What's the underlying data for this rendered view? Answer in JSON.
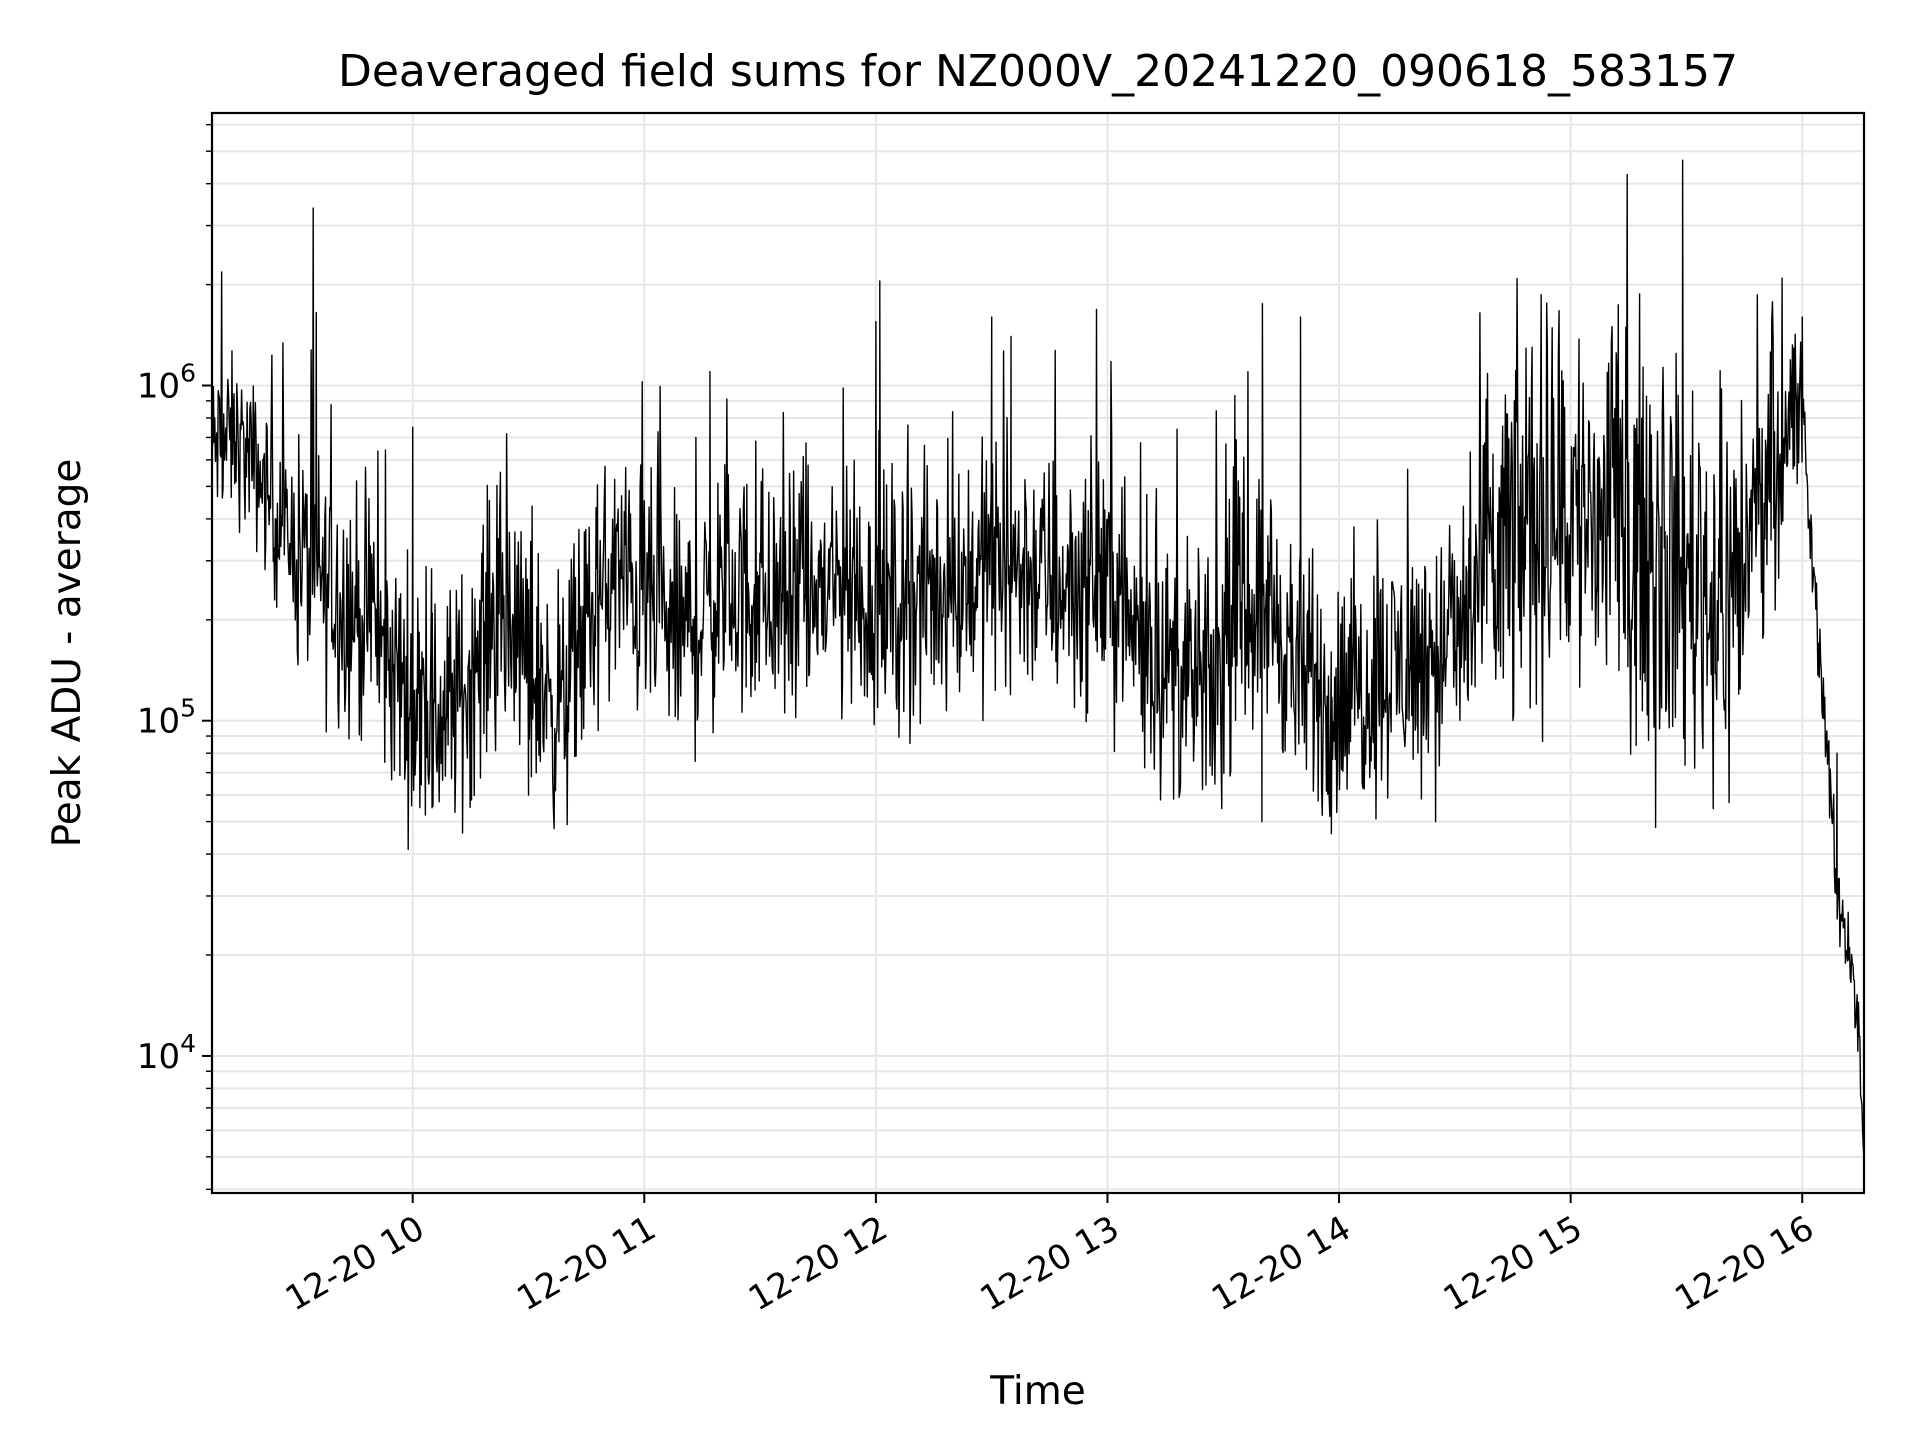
{
  "chart_data": {
    "type": "line",
    "title": "Deaveraged field sums for NZ000V_20241220_090618_583157",
    "xlabel": "Time",
    "ylabel": "Peak ADU - average",
    "yscale": "log",
    "ylim": [
      3900,
      6500000
    ],
    "xlim": [
      "2024-12-20 09:08",
      "2024-12-20 16:16"
    ],
    "grid": true,
    "line_color": "#000000",
    "x_ticks": [
      {
        "label": "12-20 10",
        "value": "2024-12-20 10:00"
      },
      {
        "label": "12-20 11",
        "value": "2024-12-20 11:00"
      },
      {
        "label": "12-20 12",
        "value": "2024-12-20 12:00"
      },
      {
        "label": "12-20 13",
        "value": "2024-12-20 13:00"
      },
      {
        "label": "12-20 14",
        "value": "2024-12-20 14:00"
      },
      {
        "label": "12-20 15",
        "value": "2024-12-20 15:00"
      },
      {
        "label": "12-20 16",
        "value": "2024-12-20 16:00"
      }
    ],
    "y_ticks": [
      {
        "base": "10",
        "exp": "4",
        "value": 10000
      },
      {
        "base": "10",
        "exp": "5",
        "value": 100000
      },
      {
        "base": "10",
        "exp": "6",
        "value": 1000000
      }
    ],
    "series": [
      {
        "x": [
          "2024-12-20 09:08",
          "2024-12-20 09:14",
          "2024-12-20 09:20",
          "2024-12-20 09:25",
          "2024-12-20 09:30",
          "2024-12-20 09:34",
          "2024-12-20 09:38",
          "2024-12-20 09:42",
          "2024-12-20 09:48",
          "2024-12-20 09:53",
          "2024-12-20 09:58",
          "2024-12-20 10:00",
          "2024-12-20 10:06",
          "2024-12-20 10:13",
          "2024-12-20 10:20",
          "2024-12-20 10:27",
          "2024-12-20 10:33",
          "2024-12-20 10:39",
          "2024-12-20 10:45",
          "2024-12-20 10:53",
          "2024-12-20 11:00",
          "2024-12-20 11:08",
          "2024-12-20 11:15",
          "2024-12-20 11:20",
          "2024-12-20 11:30",
          "2024-12-20 11:40",
          "2024-12-20 11:48",
          "2024-12-20 11:55",
          "2024-12-20 12:00",
          "2024-12-20 12:10",
          "2024-12-20 12:20",
          "2024-12-20 12:30",
          "2024-12-20 12:40",
          "2024-12-20 12:50",
          "2024-12-20 12:55",
          "2024-12-20 13:00",
          "2024-12-20 13:05",
          "2024-12-20 13:12",
          "2024-12-20 13:20",
          "2024-12-20 13:27",
          "2024-12-20 13:35",
          "2024-12-20 13:42",
          "2024-12-20 13:50",
          "2024-12-20 14:00",
          "2024-12-20 14:10",
          "2024-12-20 14:20",
          "2024-12-20 14:30",
          "2024-12-20 14:37",
          "2024-12-20 14:45",
          "2024-12-20 14:55",
          "2024-12-20 15:05",
          "2024-12-20 15:15",
          "2024-12-20 15:25",
          "2024-12-20 15:32",
          "2024-12-20 15:40",
          "2024-12-20 15:45",
          "2024-12-20 15:52",
          "2024-12-20 15:58",
          "2024-12-20 16:00",
          "2024-12-20 16:03",
          "2024-12-20 16:06",
          "2024-12-20 16:09",
          "2024-12-20 16:12",
          "2024-12-20 16:14",
          "2024-12-20 16:16"
        ],
        "values": [
          650000,
          700000,
          550000,
          400000,
          330000,
          280000,
          250000,
          230000,
          200000,
          150000,
          130000,
          110000,
          100000,
          120000,
          200000,
          180000,
          130000,
          110000,
          190000,
          280000,
          230000,
          180000,
          200000,
          250000,
          230000,
          220000,
          250000,
          230000,
          220000,
          230000,
          250000,
          300000,
          280000,
          250000,
          260000,
          280000,
          200000,
          160000,
          130000,
          120000,
          220000,
          230000,
          130000,
          110000,
          140000,
          150000,
          170000,
          250000,
          350000,
          450000,
          400000,
          380000,
          300000,
          280000,
          220000,
          320000,
          600000,
          800000,
          850000,
          250000,
          100000,
          30000,
          22000,
          15000,
          5000
        ],
        "spikes": [
          {
            "x": "2024-12-20 09:35",
            "value": 1650000
          },
          {
            "x": "2024-12-20 10:00",
            "value": 750000
          },
          {
            "x": "2024-12-20 11:17",
            "value": 1100000
          },
          {
            "x": "2024-12-20 12:00",
            "value": 1550000
          },
          {
            "x": "2024-12-20 12:01",
            "value": 2050000
          },
          {
            "x": "2024-12-20 12:30",
            "value": 1600000
          },
          {
            "x": "2024-12-20 12:35",
            "value": 1400000
          },
          {
            "x": "2024-12-20 13:50",
            "value": 1600000
          },
          {
            "x": "2024-12-20 14:50",
            "value": 1300000
          },
          {
            "x": "2024-12-20 15:29",
            "value": 4700000
          },
          {
            "x": "2024-12-20 16:00",
            "value": 1600000
          },
          {
            "x": "2024-12-20 16:09",
            "value": 80000
          }
        ],
        "dips": [
          {
            "x": "2024-12-20 10:05",
            "value": 55000
          },
          {
            "x": "2024-12-20 10:30",
            "value": 60000
          },
          {
            "x": "2024-12-20 13:40",
            "value": 50000
          },
          {
            "x": "2024-12-20 13:58",
            "value": 46000
          },
          {
            "x": "2024-12-20 14:25",
            "value": 50000
          },
          {
            "x": "2024-12-20 15:22",
            "value": 48000
          }
        ]
      }
    ]
  }
}
